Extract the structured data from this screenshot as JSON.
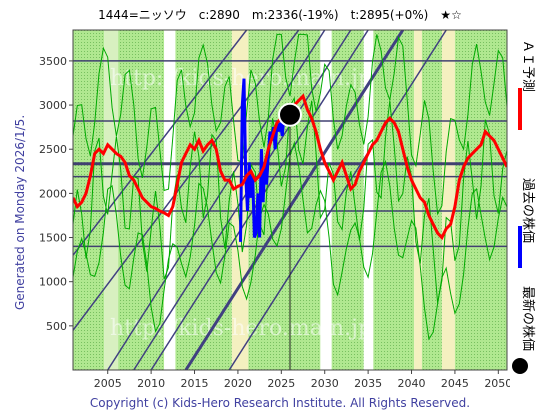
{
  "header": {
    "title": "1444=ニッソウ　c:2890　m:2336(-19%)　t:2895(+0%)　★☆"
  },
  "side_note": "Generated on Monday 2026/1/5.",
  "footer": "Copyright (c) Kids-Hero Research Institute. All Rights Reserved.",
  "watermark": "http://kids-hero.main.jp",
  "legend": {
    "ai": "ＡＩ予測",
    "past": "過去の株価",
    "latest": "最新の株価"
  },
  "colors": {
    "ai": "#ff0000",
    "past": "#0000ff",
    "latest": "#000000",
    "green_band": "#99e07a",
    "green_line": "#00aa00",
    "trend_line": "#404080",
    "hline": "#404070"
  },
  "chart_data": {
    "type": "line",
    "xlim": [
      2001,
      2051
    ],
    "ylim": [
      0,
      3850
    ],
    "x_ticks": [
      2005,
      2010,
      2015,
      2020,
      2025,
      2030,
      2035,
      2040,
      2045,
      2050
    ],
    "y_ticks": [
      500,
      1000,
      1500,
      2000,
      2500,
      3000,
      3500
    ],
    "hlines": [
      3500,
      2820,
      2336,
      2190,
      1800,
      1400
    ],
    "vline": 2026,
    "latest_point": {
      "x": 2026.0,
      "y": 2890
    },
    "trend_lines": [
      {
        "x1": 2005,
        "y1": 0,
        "x2": 2030,
        "y2": 3850
      },
      {
        "x1": 2008,
        "y1": 0,
        "x2": 2033,
        "y2": 3850
      },
      {
        "x1": 2010,
        "y1": 0,
        "x2": 2035,
        "y2": 3850
      },
      {
        "x1": 2014,
        "y1": 0,
        "x2": 2039,
        "y2": 3850
      },
      {
        "x1": 2019,
        "y1": 0,
        "x2": 2044,
        "y2": 3850
      },
      {
        "x1": 2001,
        "y1": 1300,
        "x2": 2021,
        "y2": 3850
      },
      {
        "x1": 2001,
        "y1": 450,
        "x2": 2027,
        "y2": 3850
      }
    ],
    "series": [
      {
        "name": "ＡＩ予測",
        "x": [
          2001.0,
          2001.5,
          2002.0,
          2002.5,
          2003.0,
          2003.5,
          2004.0,
          2004.5,
          2005.0,
          2005.5,
          2006.0,
          2006.5,
          2007.0,
          2007.5,
          2008.0,
          2008.5,
          2009.0,
          2009.5,
          2010.0,
          2010.5,
          2011.0,
          2011.5,
          2012.0,
          2012.5,
          2013.0,
          2013.5,
          2014.0,
          2014.5,
          2015.0,
          2015.5,
          2016.0,
          2016.5,
          2017.0,
          2017.5,
          2018.0,
          2018.5,
          2019.0,
          2019.5,
          2020.0,
          2020.5,
          2021.0,
          2021.5,
          2022.0,
          2022.5,
          2023.0,
          2023.5,
          2024.0,
          2024.5,
          2025.0,
          2025.5,
          2026.0,
          2026.5,
          2027.0,
          2027.5,
          2028.0,
          2028.5,
          2029.0,
          2029.5,
          2030.0,
          2030.5,
          2031.0,
          2031.5,
          2032.0,
          2032.5,
          2033.0,
          2033.5,
          2034.0,
          2034.5,
          2035.0,
          2035.5,
          2036.0,
          2036.5,
          2037.0,
          2037.5,
          2038.0,
          2038.5,
          2039.0,
          2039.5,
          2040.0,
          2040.5,
          2041.0,
          2041.5,
          2042.0,
          2042.5,
          2043.0,
          2043.5,
          2044.0,
          2044.5,
          2045.0,
          2045.5,
          2046.0,
          2046.5,
          2047.0,
          2047.5,
          2048.0,
          2048.5,
          2049.0,
          2049.5,
          2050.0,
          2050.5,
          2051.0
        ],
        "values": [
          1950,
          1850,
          1900,
          2000,
          2200,
          2450,
          2500,
          2450,
          2550,
          2500,
          2450,
          2420,
          2350,
          2200,
          2150,
          2050,
          1950,
          1900,
          1850,
          1830,
          1800,
          1780,
          1750,
          1850,
          2100,
          2350,
          2450,
          2550,
          2500,
          2600,
          2480,
          2550,
          2600,
          2500,
          2250,
          2150,
          2150,
          2050,
          2080,
          2100,
          2200,
          2250,
          2150,
          2200,
          2300,
          2500,
          2650,
          2800,
          2850,
          2850,
          2900,
          3000,
          3050,
          3100,
          2950,
          2850,
          2700,
          2500,
          2350,
          2250,
          2150,
          2250,
          2350,
          2200,
          2050,
          2100,
          2250,
          2350,
          2450,
          2550,
          2600,
          2700,
          2800,
          2850,
          2800,
          2700,
          2500,
          2300,
          2150,
          2050,
          1950,
          1900,
          1750,
          1650,
          1550,
          1500,
          1600,
          1650,
          1850,
          2150,
          2300,
          2400,
          2450,
          2500,
          2550,
          2700,
          2650,
          2600,
          2500,
          2400,
          2300
        ]
      },
      {
        "name": "過去の株価",
        "x": [
          2020.3,
          2020.5,
          2020.7,
          2020.9,
          2021.1,
          2021.3,
          2021.5,
          2021.7,
          2021.9,
          2022.1,
          2022.3,
          2022.5,
          2022.7,
          2022.9,
          2023.1,
          2023.3,
          2023.5,
          2023.7,
          2023.9,
          2024.1,
          2024.3,
          2024.5,
          2024.7,
          2024.9,
          2025.1,
          2025.3,
          2025.5,
          2025.7
        ],
        "values": [
          1450,
          3000,
          3300,
          2200,
          1800,
          2350,
          1950,
          2200,
          1500,
          1550,
          2000,
          1500,
          2500,
          1900,
          2350,
          2100,
          2450,
          2700,
          2600,
          2750,
          2500,
          2800,
          2700,
          2800,
          2650,
          2850,
          2900,
          2850
        ]
      }
    ]
  }
}
